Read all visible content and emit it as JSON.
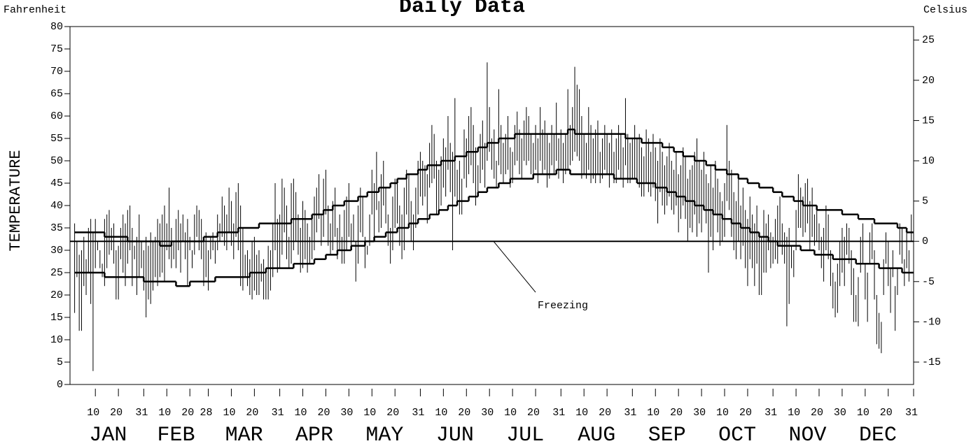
{
  "chart_data": {
    "type": "high_low",
    "title": "Daily Data",
    "y_unit_label": "Fahrenheit",
    "y2_unit_label": "Celsius",
    "y_label": "TEMPERATURE",
    "color": "#000000",
    "xlim": [
      -1,
      365
    ],
    "ylim": [
      0,
      80
    ],
    "yticks": [
      0,
      5,
      10,
      15,
      20,
      25,
      30,
      35,
      40,
      45,
      50,
      55,
      60,
      65,
      70,
      75,
      80
    ],
    "y2lim": [
      -17.78,
      26.67
    ],
    "y2ticks": [
      -15,
      -10,
      -5,
      0,
      5,
      10,
      15,
      20,
      25
    ],
    "xticks": [
      10,
      20,
      31,
      {
        "value": 41,
        "label": "10"
      },
      {
        "value": 51,
        "label": "20"
      },
      {
        "value": 59,
        "label": "28"
      },
      {
        "value": 69,
        "label": "10"
      },
      {
        "value": 79,
        "label": "20"
      },
      {
        "value": 90,
        "label": "31"
      },
      {
        "value": 100,
        "label": "10"
      },
      {
        "value": 110,
        "label": "20"
      },
      {
        "value": 120,
        "label": "30"
      },
      {
        "value": 130,
        "label": "10"
      },
      {
        "value": 140,
        "label": "20"
      },
      {
        "value": 151,
        "label": "31"
      },
      {
        "value": 161,
        "label": "10"
      },
      {
        "value": 171,
        "label": "20"
      },
      {
        "value": 181,
        "label": "30"
      },
      {
        "value": 191,
        "label": "10"
      },
      {
        "value": 201,
        "label": "20"
      },
      {
        "value": 212,
        "label": "31"
      },
      {
        "value": 222,
        "label": "10"
      },
      {
        "value": 232,
        "label": "20"
      },
      {
        "value": 243,
        "label": "31"
      },
      {
        "value": 253,
        "label": "10"
      },
      {
        "value": 263,
        "label": "20"
      },
      {
        "value": 273,
        "label": "30"
      },
      {
        "value": 283,
        "label": "10"
      },
      {
        "value": 293,
        "label": "20"
      },
      {
        "value": 304,
        "label": "31"
      },
      {
        "value": 314,
        "label": "10"
      },
      {
        "value": 324,
        "label": "20"
      },
      {
        "value": 334,
        "label": "30"
      },
      {
        "value": 344,
        "label": "10"
      },
      {
        "value": 354,
        "label": "20"
      },
      {
        "value": 365,
        "label": "31"
      }
    ],
    "months": [
      "JAN",
      "FEB",
      "MAR",
      "APR",
      "MAY",
      "JUN",
      "JUL",
      "AUG",
      "SEP",
      "OCT",
      "NOV",
      "DEC"
    ],
    "reference_line": {
      "value": 32,
      "label": "Freezing"
    },
    "x": [
      1,
      2,
      3,
      4,
      5,
      6,
      7,
      8,
      9,
      10,
      11,
      12,
      13,
      14,
      15,
      16,
      17,
      18,
      19,
      20,
      21,
      22,
      23,
      24,
      25,
      26,
      27,
      28,
      29,
      30,
      31,
      32,
      33,
      34,
      35,
      36,
      37,
      38,
      39,
      40,
      41,
      42,
      43,
      44,
      45,
      46,
      47,
      48,
      49,
      50,
      51,
      52,
      53,
      54,
      55,
      56,
      57,
      58,
      59,
      60,
      61,
      62,
      63,
      64,
      65,
      66,
      67,
      68,
      69,
      70,
      71,
      72,
      73,
      74,
      75,
      76,
      77,
      78,
      79,
      80,
      81,
      82,
      83,
      84,
      85,
      86,
      87,
      88,
      89,
      90,
      91,
      92,
      93,
      94,
      95,
      96,
      97,
      98,
      99,
      100,
      101,
      102,
      103,
      104,
      105,
      106,
      107,
      108,
      109,
      110,
      111,
      112,
      113,
      114,
      115,
      116,
      117,
      118,
      119,
      120,
      121,
      122,
      123,
      124,
      125,
      126,
      127,
      128,
      129,
      130,
      131,
      132,
      133,
      134,
      135,
      136,
      137,
      138,
      139,
      140,
      141,
      142,
      143,
      144,
      145,
      146,
      147,
      148,
      149,
      150,
      151,
      152,
      153,
      154,
      155,
      156,
      157,
      158,
      159,
      160,
      161,
      162,
      163,
      164,
      165,
      166,
      167,
      168,
      169,
      170,
      171,
      172,
      173,
      174,
      175,
      176,
      177,
      178,
      179,
      180,
      181,
      182,
      183,
      184,
      185,
      186,
      187,
      188,
      189,
      190,
      191,
      192,
      193,
      194,
      195,
      196,
      197,
      198,
      199,
      200,
      201,
      202,
      203,
      204,
      205,
      206,
      207,
      208,
      209,
      210,
      211,
      212,
      213,
      214,
      215,
      216,
      217,
      218,
      219,
      220,
      221,
      222,
      223,
      224,
      225,
      226,
      227,
      228,
      229,
      230,
      231,
      232,
      233,
      234,
      235,
      236,
      237,
      238,
      239,
      240,
      241,
      242,
      243,
      244,
      245,
      246,
      247,
      248,
      249,
      250,
      251,
      252,
      253,
      254,
      255,
      256,
      257,
      258,
      259,
      260,
      261,
      262,
      263,
      264,
      265,
      266,
      267,
      268,
      269,
      270,
      271,
      272,
      273,
      274,
      275,
      276,
      277,
      278,
      279,
      280,
      281,
      282,
      283,
      284,
      285,
      286,
      287,
      288,
      289,
      290,
      291,
      292,
      293,
      294,
      295,
      296,
      297,
      298,
      299,
      300,
      301,
      302,
      303,
      304,
      305,
      306,
      307,
      308,
      309,
      310,
      311,
      312,
      313,
      314,
      315,
      316,
      317,
      318,
      319,
      320,
      321,
      322,
      323,
      324,
      325,
      326,
      327,
      328,
      329,
      330,
      331,
      332,
      333,
      334,
      335,
      336,
      337,
      338,
      339,
      340,
      341,
      342,
      343,
      344,
      345,
      346,
      347,
      348,
      349,
      350,
      351,
      352,
      353,
      354,
      355,
      356,
      357,
      358,
      359,
      360,
      361,
      362,
      363,
      364,
      365
    ],
    "high": [
      36,
      32,
      29,
      30,
      33,
      28,
      35,
      37,
      34,
      37,
      32,
      30,
      27,
      37,
      38,
      39,
      35,
      36,
      30,
      31,
      35,
      38,
      36,
      39,
      40,
      35,
      31,
      33,
      38,
      32,
      30,
      33,
      31,
      34,
      32,
      33,
      37,
      36,
      38,
      40,
      36,
      44,
      35,
      32,
      37,
      39,
      36,
      38,
      34,
      37,
      33,
      30,
      38,
      40,
      39,
      37,
      33,
      34,
      30,
      33,
      34,
      32,
      38,
      36,
      42,
      40,
      38,
      44,
      41,
      36,
      43,
      45,
      40,
      35,
      29,
      30,
      28,
      32,
      33,
      29,
      30,
      27,
      28,
      26,
      31,
      30,
      36,
      45,
      37,
      38,
      46,
      44,
      40,
      33,
      45,
      46,
      43,
      38,
      35,
      41,
      39,
      36,
      33,
      37,
      42,
      44,
      47,
      38,
      46,
      48,
      40,
      36,
      41,
      44,
      35,
      38,
      33,
      39,
      42,
      45,
      36,
      38,
      32,
      40,
      44,
      42,
      33,
      31,
      38,
      48,
      45,
      52,
      41,
      47,
      50,
      44,
      38,
      35,
      42,
      46,
      45,
      40,
      38,
      44,
      48,
      47,
      41,
      38,
      44,
      50,
      52,
      50,
      49,
      47,
      54,
      58,
      56,
      50,
      48,
      51,
      55,
      53,
      60,
      54,
      52,
      64,
      48,
      50,
      46,
      57,
      55,
      60,
      62,
      58,
      53,
      49,
      56,
      59,
      54,
      72,
      62,
      55,
      57,
      50,
      66,
      58,
      54,
      56,
      60,
      53,
      52,
      58,
      61,
      57,
      55,
      59,
      62,
      60,
      56,
      54,
      58,
      55,
      62,
      57,
      59,
      56,
      54,
      58,
      56,
      63,
      55,
      57,
      54,
      56,
      66,
      58,
      62,
      71,
      67,
      66,
      60,
      56,
      54,
      62,
      58,
      55,
      57,
      59,
      52,
      55,
      58,
      56,
      54,
      57,
      52,
      55,
      58,
      56,
      53,
      64,
      56,
      54,
      55,
      58,
      55,
      56,
      53,
      51,
      57,
      55,
      52,
      56,
      53,
      50,
      55,
      52,
      49,
      51,
      54,
      50,
      48,
      52,
      47,
      49,
      53,
      51,
      46,
      48,
      49,
      52,
      55,
      50,
      48,
      52,
      47,
      45,
      49,
      44,
      50,
      46,
      43,
      41,
      45,
      58,
      50,
      48,
      43,
      41,
      46,
      40,
      44,
      39,
      37,
      42,
      38,
      36,
      40,
      34,
      33,
      39,
      36,
      38,
      34,
      33,
      37,
      40,
      42,
      36,
      34,
      33,
      35,
      31,
      30,
      39,
      47,
      44,
      42,
      45,
      46,
      41,
      44,
      38,
      40,
      36,
      33,
      35,
      40,
      38,
      30,
      25,
      23,
      27,
      32,
      35,
      33,
      36,
      35,
      30,
      26,
      20,
      24,
      33,
      36,
      27,
      25,
      34,
      36,
      30,
      20,
      16,
      14,
      28,
      34,
      32,
      26,
      30,
      22,
      26,
      36,
      35,
      28,
      35,
      30,
      38,
      36
    ],
    "low": [
      16,
      24,
      12,
      12,
      22,
      20,
      25,
      18,
      3,
      26,
      30,
      26,
      24,
      22,
      26,
      29,
      30,
      27,
      19,
      19,
      28,
      25,
      22,
      27,
      30,
      22,
      28,
      20,
      24,
      26,
      21,
      15,
      19,
      18,
      21,
      24,
      22,
      24,
      25,
      23,
      30,
      28,
      26,
      28,
      26,
      30,
      25,
      32,
      28,
      22,
      30,
      26,
      29,
      33,
      30,
      28,
      22,
      24,
      21,
      28,
      30,
      27,
      30,
      32,
      33,
      31,
      30,
      34,
      31,
      28,
      33,
      30,
      22,
      21,
      24,
      22,
      20,
      19,
      21,
      20,
      20,
      23,
      19,
      19,
      19,
      21,
      24,
      30,
      25,
      26,
      29,
      34,
      28,
      26,
      27,
      30,
      32,
      29,
      25,
      26,
      28,
      25,
      27,
      28,
      30,
      34,
      37,
      31,
      33,
      38,
      31,
      29,
      30,
      33,
      28,
      30,
      27,
      27,
      30,
      33,
      30,
      32,
      23,
      27,
      34,
      33,
      26,
      29,
      31,
      38,
      32,
      39,
      34,
      35,
      40,
      36,
      31,
      27,
      30,
      35,
      36,
      31,
      28,
      30,
      38,
      36,
      32,
      30,
      35,
      38,
      42,
      40,
      42,
      36,
      44,
      45,
      46,
      38,
      39,
      40,
      44,
      42,
      48,
      43,
      30,
      42,
      40,
      38,
      38,
      46,
      44,
      47,
      49,
      45,
      40,
      42,
      45,
      48,
      44,
      50,
      52,
      48,
      46,
      44,
      49,
      47,
      45,
      47,
      48,
      44,
      45,
      49,
      50,
      47,
      46,
      50,
      49,
      50,
      47,
      46,
      48,
      45,
      50,
      47,
      48,
      44,
      46,
      49,
      47,
      50,
      46,
      48,
      45,
      47,
      48,
      49,
      50,
      52,
      51,
      50,
      46,
      47,
      46,
      48,
      45,
      46,
      45,
      47,
      45,
      46,
      48,
      47,
      44,
      47,
      45,
      45,
      48,
      46,
      44,
      49,
      45,
      45,
      46,
      46,
      45,
      44,
      42,
      42,
      45,
      43,
      42,
      44,
      41,
      36,
      43,
      40,
      38,
      40,
      42,
      39,
      38,
      40,
      34,
      37,
      40,
      37,
      32,
      35,
      34,
      38,
      33,
      36,
      34,
      40,
      36,
      25,
      33,
      30,
      38,
      34,
      31,
      32,
      33,
      41,
      39,
      33,
      30,
      28,
      32,
      28,
      31,
      26,
      22,
      28,
      26,
      22,
      27,
      20,
      20,
      25,
      25,
      30,
      26,
      27,
      28,
      27,
      31,
      29,
      27,
      13,
      18,
      26,
      24,
      30,
      35,
      35,
      33,
      34,
      36,
      30,
      33,
      31,
      32,
      30,
      26,
      23,
      30,
      28,
      22,
      17,
      15,
      16,
      22,
      25,
      22,
      29,
      27,
      20,
      14,
      14,
      13,
      25,
      27,
      19,
      14,
      27,
      28,
      19,
      9,
      8,
      7,
      20,
      27,
      22,
      16,
      24,
      12,
      20,
      29,
      27,
      22,
      26,
      23,
      32,
      30
    ],
    "normal_high": {
      "x": [
        1,
        14,
        24,
        38,
        43,
        57,
        63,
        72,
        81,
        95,
        104,
        109,
        113,
        118,
        124,
        128,
        133,
        138,
        141,
        145,
        150,
        154,
        160,
        166,
        171,
        176,
        180,
        185,
        192,
        215,
        218,
        240,
        247,
        256,
        261,
        265,
        270,
        275,
        279,
        284,
        289,
        293,
        298,
        304,
        308,
        313,
        317,
        323,
        334,
        341,
        348,
        358,
        362
      ],
      "values": [
        34,
        33,
        32,
        31,
        32,
        33,
        34,
        35,
        36,
        37,
        38,
        39,
        40,
        41,
        42,
        43,
        44,
        45,
        46,
        47,
        48,
        49,
        50,
        51,
        52,
        53,
        54,
        55,
        56,
        57,
        56,
        55,
        54,
        53,
        52,
        51,
        50,
        49,
        48,
        47,
        46,
        45,
        44,
        43,
        42,
        41,
        40,
        39,
        38,
        37,
        36,
        35,
        34
      ]
    },
    "normal_low": {
      "x": [
        1,
        14,
        31,
        45,
        51,
        62,
        77,
        84,
        96,
        105,
        110,
        115,
        121,
        127,
        131,
        136,
        141,
        146,
        150,
        155,
        159,
        163,
        167,
        172,
        176,
        180,
        185,
        190,
        200,
        210,
        216,
        235,
        245,
        253,
        258,
        262,
        266,
        270,
        274,
        278,
        282,
        286,
        290,
        294,
        298,
        302,
        306,
        316,
        322,
        330,
        340,
        350,
        360
      ],
      "values": [
        25,
        24,
        23,
        22,
        23,
        24,
        25,
        26,
        27,
        28,
        29,
        30,
        31,
        32,
        33,
        34,
        35,
        36,
        37,
        38,
        39,
        40,
        41,
        42,
        43,
        44,
        45,
        46,
        47,
        48,
        47,
        46,
        45,
        44,
        43,
        42,
        41,
        40,
        39,
        38,
        37,
        36,
        35,
        34,
        33,
        32,
        31,
        30,
        29,
        28,
        27,
        26,
        25
      ]
    }
  }
}
